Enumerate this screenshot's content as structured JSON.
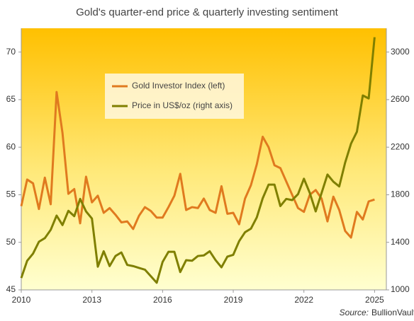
{
  "chart_data": {
    "type": "line",
    "title": "Gold's quarter-end price & quarterly investing sentiment",
    "source_label": "Source:",
    "source": "BullionVault",
    "x": [
      2010,
      2010.25,
      2010.5,
      2010.75,
      2011,
      2011.25,
      2011.5,
      2011.75,
      2012,
      2012.25,
      2012.5,
      2012.75,
      2013,
      2013.25,
      2013.5,
      2013.75,
      2014,
      2014.25,
      2014.5,
      2014.75,
      2015,
      2015.25,
      2015.5,
      2015.75,
      2016,
      2016.25,
      2016.5,
      2016.75,
      2017,
      2017.25,
      2017.5,
      2017.75,
      2018,
      2018.25,
      2018.5,
      2018.75,
      2019,
      2019.25,
      2019.5,
      2019.75,
      2020,
      2020.25,
      2020.5,
      2020.75,
      2021,
      2021.25,
      2021.5,
      2021.75,
      2022,
      2022.25,
      2022.5,
      2022.75,
      2023,
      2023.25,
      2023.5,
      2023.75,
      2024,
      2024.25,
      2024.5,
      2024.75,
      2025
    ],
    "series": [
      {
        "name": "Gold Investor Index (left)",
        "color": "#e07a1f",
        "axis": "y",
        "values": [
          53.8,
          56.6,
          56.2,
          53.5,
          56.8,
          54.0,
          65.8,
          61.5,
          55.1,
          55.6,
          52.0,
          56.9,
          54.2,
          54.9,
          53.1,
          53.6,
          52.9,
          52.1,
          52.2,
          51.4,
          52.8,
          53.7,
          53.3,
          52.6,
          52.6,
          53.7,
          54.9,
          57.2,
          53.4,
          53.7,
          53.6,
          54.6,
          53.4,
          53.1,
          55.9,
          53.0,
          53.1,
          51.9,
          54.6,
          56.0,
          58.2,
          61.1,
          60.0,
          58.1,
          57.8,
          56.4,
          55.0,
          53.6,
          53.2,
          55.0,
          55.5,
          54.6,
          52.2,
          54.8,
          53.4,
          51.2,
          50.5,
          53.2,
          52.4,
          54.3,
          54.5
        ]
      },
      {
        "name": "Price in US$/oz (right axis)",
        "color": "#7f7f00",
        "axis": "y2",
        "values": [
          1100,
          1245,
          1305,
          1405,
          1435,
          1505,
          1625,
          1545,
          1665,
          1620,
          1765,
          1660,
          1600,
          1195,
          1325,
          1200,
          1285,
          1315,
          1210,
          1200,
          1185,
          1170,
          1115,
          1060,
          1235,
          1320,
          1320,
          1150,
          1250,
          1245,
          1285,
          1290,
          1325,
          1250,
          1190,
          1280,
          1295,
          1410,
          1485,
          1515,
          1610,
          1770,
          1885,
          1885,
          1705,
          1765,
          1755,
          1805,
          1935,
          1815,
          1660,
          1815,
          1970,
          1910,
          1870,
          2070,
          2230,
          2330,
          2635,
          2610,
          3125
        ]
      }
    ],
    "xlim": [
      2010,
      2025.5
    ],
    "xticks": [
      2010,
      2013,
      2016,
      2019,
      2022,
      2025
    ],
    "ylim": [
      45,
      72.5
    ],
    "yticks": [
      45,
      50,
      55,
      60,
      65,
      70
    ],
    "y2lim": [
      1000,
      3200
    ],
    "y2ticks": [
      1000,
      1400,
      1800,
      2200,
      2600,
      3000
    ],
    "grid": false,
    "legend": "upper left"
  }
}
